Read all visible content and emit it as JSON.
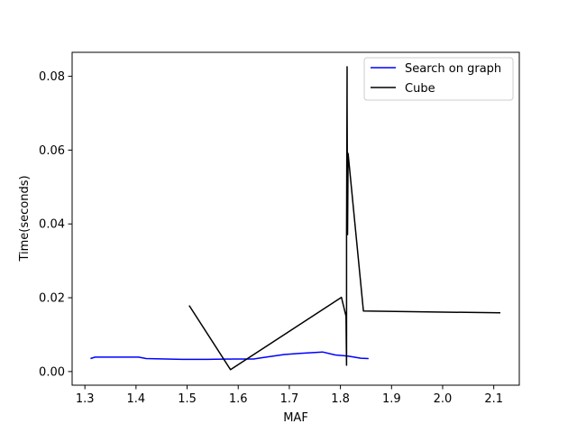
{
  "chart_data": {
    "type": "line",
    "title": "",
    "xlabel": "MAF",
    "ylabel": "Time(seconds)",
    "xlim": [
      1.275,
      2.15
    ],
    "ylim": [
      -0.0037,
      0.0865
    ],
    "xticks": [
      1.3,
      1.4,
      1.5,
      1.6,
      1.7,
      1.8,
      1.9,
      2.0,
      2.1
    ],
    "xtick_labels": [
      "1.3",
      "1.4",
      "1.5",
      "1.6",
      "1.7",
      "1.8",
      "1.9",
      "2.0",
      "2.1"
    ],
    "yticks": [
      0.0,
      0.02,
      0.04,
      0.06,
      0.08
    ],
    "ytick_labels": [
      "0.00",
      "0.02",
      "0.04",
      "0.06",
      "0.08"
    ],
    "grid": false,
    "legend_position": "top-right",
    "series": [
      {
        "name": "Search on graph",
        "color": "#0000ff",
        "x": [
          1.311,
          1.32,
          1.36,
          1.405,
          1.42,
          1.49,
          1.54,
          1.59,
          1.63,
          1.65,
          1.69,
          1.72,
          1.765,
          1.79,
          1.815,
          1.84,
          1.855
        ],
        "y": [
          0.0035,
          0.0039,
          0.0039,
          0.0039,
          0.0035,
          0.0033,
          0.0033,
          0.0034,
          0.0034,
          0.0038,
          0.0046,
          0.0049,
          0.0053,
          0.0045,
          0.0042,
          0.0036,
          0.0035
        ]
      },
      {
        "name": "Cube",
        "color": "#000000",
        "x": [
          1.504,
          1.585,
          1.802,
          1.811,
          1.812,
          1.812,
          1.813,
          1.813,
          1.814,
          1.815,
          1.845,
          2.113
        ],
        "y": [
          0.0179,
          0.0005,
          0.0201,
          0.015,
          0.0017,
          0.0371,
          0.0826,
          0.0735,
          0.0371,
          0.0591,
          0.0164,
          0.0159
        ]
      }
    ]
  }
}
